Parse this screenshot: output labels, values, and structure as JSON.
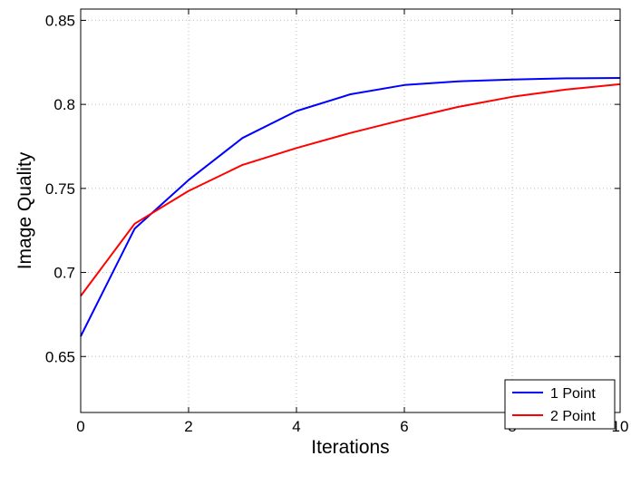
{
  "chart_data": {
    "type": "line",
    "title": "",
    "xlabel": "Iterations",
    "ylabel": "Image Quality",
    "xlim": [
      0,
      10
    ],
    "ylim": [
      0.6167,
      0.8567
    ],
    "x_ticks": [
      0,
      2,
      4,
      6,
      8,
      10
    ],
    "x_tick_labels": [
      "0",
      "2",
      "4",
      "6",
      "8",
      "10"
    ],
    "y_ticks": [
      0.65,
      0.7,
      0.75,
      0.8,
      0.85
    ],
    "y_tick_labels": [
      "0.65",
      "0.7",
      "0.75",
      "0.8",
      "0.85"
    ],
    "grid": true,
    "legend_position": "bottom-right",
    "x": [
      0,
      1,
      2,
      3,
      4,
      5,
      6,
      7,
      8,
      9,
      10
    ],
    "series": [
      {
        "name": "1 Point",
        "color": "#0000ff",
        "values": [
          0.662,
          0.726,
          0.755,
          0.78,
          0.796,
          0.806,
          0.8115,
          0.8137,
          0.8148,
          0.8155,
          0.8157
        ]
      },
      {
        "name": "2 Point",
        "color": "#ff0000",
        "values": [
          0.686,
          0.729,
          0.7485,
          0.764,
          0.774,
          0.783,
          0.791,
          0.7985,
          0.8045,
          0.8088,
          0.812
        ]
      }
    ]
  }
}
